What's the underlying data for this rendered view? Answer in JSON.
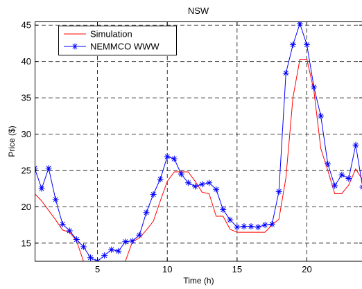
{
  "chart_data": {
    "type": "line",
    "title": "NSW",
    "xlabel": "Time (h)",
    "ylabel": "Price ($)",
    "xlim": [
      0.5,
      24
    ],
    "ylim": [
      12.5,
      45.5
    ],
    "xticks": [
      5,
      10,
      15,
      20
    ],
    "yticks": [
      15,
      20,
      25,
      30,
      35,
      40,
      45
    ],
    "grid": true,
    "grid_style": "dashed",
    "legend_position": "top-left",
    "series": [
      {
        "name": "Simulation",
        "color": "#ff0000",
        "marker": "none",
        "x": [
          0.5,
          1,
          1.5,
          2,
          2.5,
          3,
          3.5,
          4,
          4.5,
          5,
          5.5,
          6,
          6.5,
          7,
          7.5,
          8,
          8.5,
          9,
          9.5,
          10,
          10.5,
          11,
          11.5,
          12,
          12.5,
          13,
          13.5,
          14,
          14.5,
          15,
          15.5,
          16,
          16.5,
          17,
          17.5,
          18,
          18.5,
          19,
          19.5,
          20,
          20.5,
          21,
          21.5,
          22,
          22.5,
          23,
          23.5,
          24
        ],
        "y": [
          21.8,
          20.8,
          19.5,
          18.2,
          16.8,
          16.5,
          15.3,
          12.5,
          12.5,
          12.5,
          12.5,
          12.5,
          12.5,
          12.5,
          15.2,
          15.7,
          16.8,
          18.0,
          20.8,
          23.5,
          24.8,
          24.8,
          24.8,
          23.5,
          22.0,
          21.8,
          18.7,
          18.7,
          16.9,
          16.5,
          16.5,
          16.5,
          16.5,
          16.5,
          17.5,
          18.3,
          24.0,
          35.0,
          40.3,
          40.3,
          36.0,
          28.0,
          25.0,
          21.8,
          21.8,
          23.0,
          25.2,
          23.7
        ]
      },
      {
        "name": "NEMMCO WWW",
        "color": "#0000ff",
        "marker": "star",
        "x": [
          0.5,
          1,
          1.5,
          2,
          2.5,
          3,
          3.5,
          4,
          4.5,
          5,
          5.5,
          6,
          6.5,
          7,
          7.5,
          8,
          8.5,
          9,
          9.5,
          10,
          10.5,
          11,
          11.5,
          12,
          12.5,
          13,
          13.5,
          14,
          14.5,
          15,
          15.5,
          16,
          16.5,
          17,
          17.5,
          18,
          18.5,
          19,
          19.5,
          20,
          20.5,
          21,
          21.5,
          22,
          22.5,
          23,
          23.5,
          24
        ],
        "y": [
          25.3,
          22.5,
          25.3,
          21.0,
          17.6,
          16.7,
          15.5,
          14.5,
          13.0,
          12.5,
          13.3,
          14.1,
          13.9,
          15.2,
          15.3,
          16.1,
          19.2,
          21.7,
          23.8,
          26.9,
          26.6,
          24.5,
          23.3,
          22.8,
          23.1,
          23.3,
          22.4,
          19.6,
          18.2,
          17.2,
          17.3,
          17.3,
          17.2,
          17.5,
          17.6,
          22.1,
          38.4,
          42.3,
          45.2,
          42.3,
          36.5,
          32.5,
          25.9,
          22.9,
          24.4,
          23.9,
          28.5,
          22.7
        ]
      }
    ]
  }
}
